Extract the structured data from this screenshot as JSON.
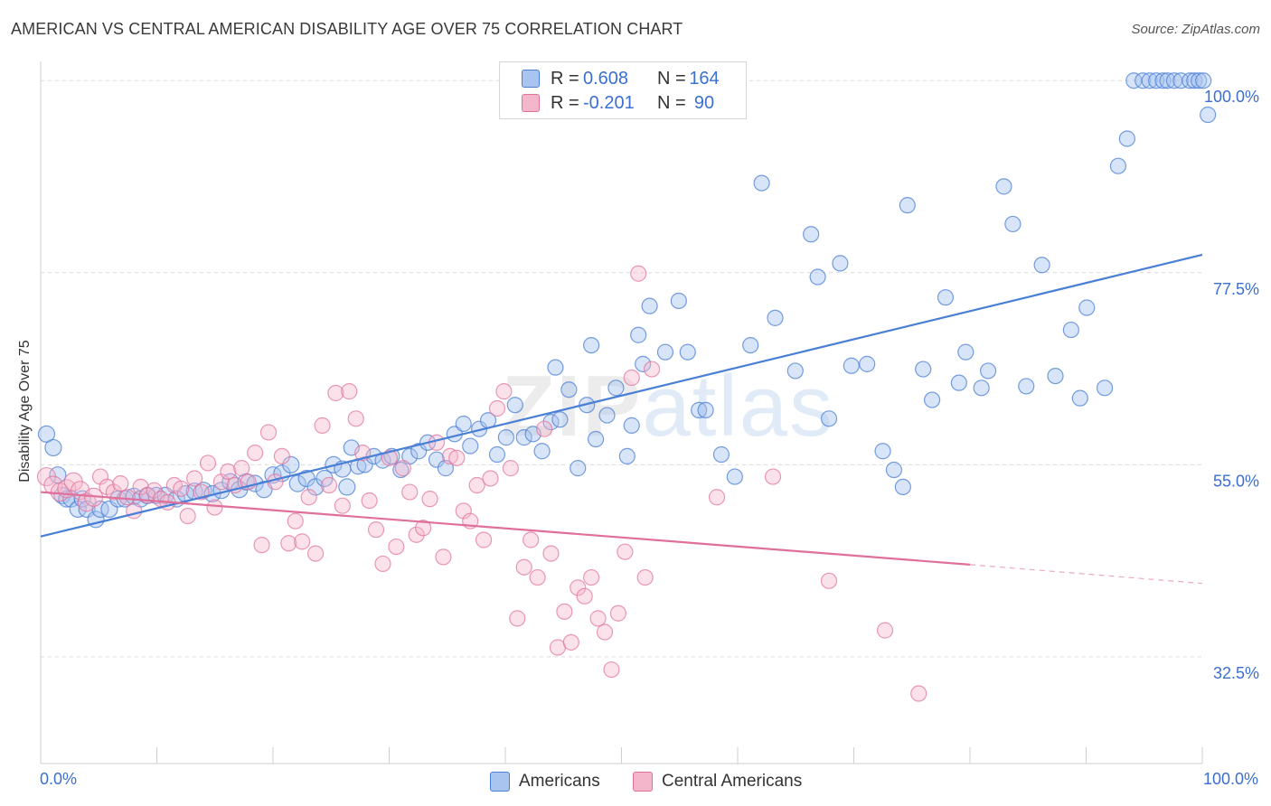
{
  "title": "AMERICAN VS CENTRAL AMERICAN DISABILITY AGE OVER 75 CORRELATION CHART",
  "source": "Source: ZipAtlas.com",
  "watermark": {
    "zip": "ZIP",
    "atlas": "atlas"
  },
  "colors": {
    "americans": "#4a7fd6",
    "americans_fill": "#a9c4ee",
    "central": "#e06f9a",
    "central_fill": "#f4b6cb",
    "axis_text": "#3b6fd1",
    "grid": "#d9d9d9"
  },
  "legend": {
    "rows": [
      {
        "r_label": "R =",
        "r_value": "0.608",
        "n_label": "N =",
        "n_value": "164"
      },
      {
        "r_label": "R =",
        "r_value": "-0.201",
        "n_label": "N =",
        "n_value": "90"
      }
    ]
  },
  "bottom_legend": {
    "americans": "Americans",
    "central": "Central Americans"
  },
  "x_axis": {
    "left_label": "0.0%",
    "right_label": "100.0%"
  },
  "y_axis_title": "Disability Age Over 75",
  "chart_data": {
    "type": "scatter",
    "title": "AMERICAN VS CENTRAL AMERICAN DISABILITY AGE OVER 75 CORRELATION CHART",
    "xlabel": "",
    "ylabel": "Disability Age Over 75",
    "xlim": [
      0,
      100
    ],
    "ylim": [
      20,
      102
    ],
    "y_ticks": [
      {
        "value": 32.5,
        "label": "32.5%"
      },
      {
        "value": 55.0,
        "label": "55.0%"
      },
      {
        "value": 77.5,
        "label": "77.5%"
      },
      {
        "value": 100.0,
        "label": "100.0%"
      }
    ],
    "grid": true,
    "series": [
      {
        "name": "Americans",
        "r": 0.608,
        "n": 164,
        "trend": {
          "x": [
            0,
            100
          ],
          "y": [
            46.6,
            79.6
          ]
        },
        "points": [
          [
            0.2,
            58.6
          ],
          [
            0.8,
            57
          ],
          [
            1.2,
            53.8
          ],
          [
            1.6,
            51.4
          ],
          [
            2,
            51
          ],
          [
            2.4,
            51
          ],
          [
            3,
            49.8
          ],
          [
            3.4,
            51
          ],
          [
            3.8,
            49.8
          ],
          [
            4.6,
            48.6
          ],
          [
            5,
            49.8
          ],
          [
            5.8,
            49.8
          ],
          [
            6.6,
            51
          ],
          [
            7.2,
            51
          ],
          [
            8,
            51.3
          ],
          [
            8.6,
            51
          ],
          [
            9.2,
            51.4
          ],
          [
            10,
            51.4
          ],
          [
            10.8,
            51.4
          ],
          [
            11.8,
            51
          ],
          [
            12.6,
            51.6
          ],
          [
            13.4,
            51.9
          ],
          [
            14.2,
            52
          ],
          [
            15,
            51.6
          ],
          [
            15.8,
            52
          ],
          [
            16.6,
            53
          ],
          [
            17.4,
            52.1
          ],
          [
            18,
            53
          ],
          [
            18.8,
            52.8
          ],
          [
            19.6,
            52.1
          ],
          [
            20.4,
            53.8
          ],
          [
            21.2,
            54
          ],
          [
            22,
            55
          ],
          [
            22.6,
            52.8
          ],
          [
            23.4,
            53.4
          ],
          [
            24.2,
            52.4
          ],
          [
            25,
            53.4
          ],
          [
            25.8,
            55
          ],
          [
            26.6,
            54.5
          ],
          [
            27,
            52.4
          ],
          [
            27.4,
            57
          ],
          [
            28,
            54.8
          ],
          [
            28.6,
            55
          ],
          [
            29.4,
            56
          ],
          [
            30.2,
            55.5
          ],
          [
            31,
            56
          ],
          [
            31.8,
            54.4
          ],
          [
            32.6,
            56
          ],
          [
            33.4,
            56.6
          ],
          [
            34.2,
            57.6
          ],
          [
            35,
            55.6
          ],
          [
            35.8,
            54.6
          ],
          [
            36.6,
            58.6
          ],
          [
            37.4,
            59.8
          ],
          [
            38,
            57.2
          ],
          [
            38.8,
            59.2
          ],
          [
            39.6,
            60.2
          ],
          [
            40.4,
            56.2
          ],
          [
            41.2,
            58.2
          ],
          [
            42,
            62
          ],
          [
            42.8,
            58.2
          ],
          [
            43.6,
            58.6
          ],
          [
            44.4,
            56.6
          ],
          [
            45.2,
            60
          ],
          [
            45.6,
            66.4
          ],
          [
            46,
            60.3
          ],
          [
            46.8,
            63.8
          ],
          [
            47.6,
            54.6
          ],
          [
            48.4,
            62
          ],
          [
            48.8,
            69
          ],
          [
            49.2,
            58
          ],
          [
            50.2,
            60.8
          ],
          [
            51,
            64
          ],
          [
            52,
            56
          ],
          [
            52.4,
            59.6
          ],
          [
            53,
            70.2
          ],
          [
            53.4,
            66.8
          ],
          [
            54,
            73.6
          ],
          [
            55.4,
            68.2
          ],
          [
            56.6,
            74.2
          ],
          [
            57.4,
            68.2
          ],
          [
            58.4,
            61.4
          ],
          [
            59,
            61.4
          ],
          [
            60.4,
            56.2
          ],
          [
            61.6,
            53.6
          ],
          [
            63,
            69
          ],
          [
            64,
            88
          ],
          [
            65.2,
            72.2
          ],
          [
            67,
            66
          ],
          [
            68.4,
            82
          ],
          [
            69,
            77
          ],
          [
            70,
            60.4
          ],
          [
            71,
            78.6
          ],
          [
            72,
            66.6
          ],
          [
            73.4,
            66.8
          ],
          [
            74.8,
            56.6
          ],
          [
            75.8,
            54.4
          ],
          [
            76.6,
            52.4
          ],
          [
            77,
            85.4
          ],
          [
            78.4,
            66.2
          ],
          [
            79.2,
            62.6
          ],
          [
            80.4,
            74.6
          ],
          [
            81.6,
            64.6
          ],
          [
            82.2,
            68.2
          ],
          [
            83.6,
            64
          ],
          [
            84.2,
            66
          ],
          [
            85.6,
            87.6
          ],
          [
            86.4,
            83.2
          ],
          [
            87.6,
            64.2
          ],
          [
            89,
            78.4
          ],
          [
            90.2,
            65.4
          ],
          [
            91.6,
            70.8
          ],
          [
            92.4,
            62.8
          ],
          [
            93,
            73.4
          ],
          [
            94.6,
            64
          ],
          [
            95.8,
            90
          ],
          [
            96.6,
            93.2
          ],
          [
            97.2,
            100
          ],
          [
            98,
            100
          ],
          [
            98.6,
            100
          ],
          [
            99.2,
            100
          ],
          [
            99.8,
            100
          ],
          [
            100.2,
            100
          ],
          [
            100.8,
            100
          ],
          [
            101.4,
            100
          ],
          [
            102.2,
            100
          ],
          [
            102.6,
            100
          ],
          [
            103,
            100
          ],
          [
            103.4,
            100
          ],
          [
            103.8,
            96
          ]
        ]
      },
      {
        "name": "Central Americans",
        "r": -0.201,
        "n": 90,
        "trend": {
          "x": [
            0,
            80
          ],
          "y": [
            51.8,
            43.3
          ]
        },
        "trend_dashed": {
          "x": [
            80,
            100
          ],
          "y": [
            43.3,
            41.1
          ]
        },
        "points": [
          [
            0.2,
            53.6
          ],
          [
            0.8,
            52.6
          ],
          [
            1.4,
            51.8
          ],
          [
            2,
            52.2
          ],
          [
            2.6,
            53
          ],
          [
            3.2,
            52
          ],
          [
            3.8,
            50.6
          ],
          [
            4.4,
            51.2
          ],
          [
            5,
            53.6
          ],
          [
            5.6,
            52.4
          ],
          [
            6.2,
            51.8
          ],
          [
            6.8,
            52.8
          ],
          [
            7.4,
            51.2
          ],
          [
            8,
            49.6
          ],
          [
            8.6,
            52.4
          ],
          [
            9.2,
            51.4
          ],
          [
            9.8,
            52
          ],
          [
            10.4,
            51
          ],
          [
            11,
            50.6
          ],
          [
            11.6,
            52.6
          ],
          [
            12.2,
            52.2
          ],
          [
            12.8,
            49
          ],
          [
            13.4,
            53.4
          ],
          [
            14,
            51.8
          ],
          [
            14.6,
            55.2
          ],
          [
            15.2,
            50
          ],
          [
            15.8,
            53
          ],
          [
            16.4,
            54.2
          ],
          [
            17,
            52.6
          ],
          [
            17.6,
            54.6
          ],
          [
            18.2,
            53
          ],
          [
            18.8,
            56.4
          ],
          [
            19.4,
            45.6
          ],
          [
            20,
            58.8
          ],
          [
            20.6,
            53
          ],
          [
            21.2,
            56
          ],
          [
            21.8,
            45.8
          ],
          [
            22.4,
            48.4
          ],
          [
            23,
            46
          ],
          [
            23.6,
            51.2
          ],
          [
            24.2,
            44.6
          ],
          [
            24.8,
            59.6
          ],
          [
            25.4,
            52.6
          ],
          [
            26,
            63.4
          ],
          [
            26.6,
            50.2
          ],
          [
            27.2,
            63.6
          ],
          [
            27.8,
            60.4
          ],
          [
            28.4,
            56.4
          ],
          [
            29,
            50.8
          ],
          [
            29.6,
            47.4
          ],
          [
            30.2,
            43.4
          ],
          [
            30.8,
            55.8
          ],
          [
            31.4,
            45.4
          ],
          [
            32,
            54.6
          ],
          [
            32.6,
            51.8
          ],
          [
            33.2,
            46.8
          ],
          [
            33.8,
            47.6
          ],
          [
            34.4,
            51
          ],
          [
            35,
            57.6
          ],
          [
            35.6,
            44.2
          ],
          [
            36.2,
            56
          ],
          [
            36.8,
            55.8
          ],
          [
            37.4,
            49.6
          ],
          [
            38,
            48.4
          ],
          [
            38.6,
            52.6
          ],
          [
            39.2,
            46.2
          ],
          [
            39.8,
            53.4
          ],
          [
            40.4,
            61.6
          ],
          [
            41,
            63.6
          ],
          [
            41.6,
            54.6
          ],
          [
            42.2,
            37
          ],
          [
            42.8,
            43
          ],
          [
            43.4,
            46.2
          ],
          [
            44,
            41.8
          ],
          [
            44.6,
            59.2
          ],
          [
            45.2,
            44.6
          ],
          [
            45.8,
            33.6
          ],
          [
            46.4,
            37.8
          ],
          [
            47,
            34.2
          ],
          [
            47.6,
            40.6
          ],
          [
            48.2,
            39.6
          ],
          [
            48.8,
            41.8
          ],
          [
            49.4,
            37
          ],
          [
            50,
            35.4
          ],
          [
            50.6,
            31
          ],
          [
            51.2,
            37.6
          ],
          [
            51.8,
            44.8
          ],
          [
            52.4,
            65.2
          ],
          [
            53,
            77.4
          ],
          [
            53.6,
            41.8
          ],
          [
            54.2,
            66.2
          ],
          [
            60,
            51.2
          ],
          [
            65,
            53.6
          ],
          [
            70,
            41.4
          ],
          [
            75,
            35.6
          ],
          [
            78,
            28.2
          ]
        ]
      }
    ]
  }
}
